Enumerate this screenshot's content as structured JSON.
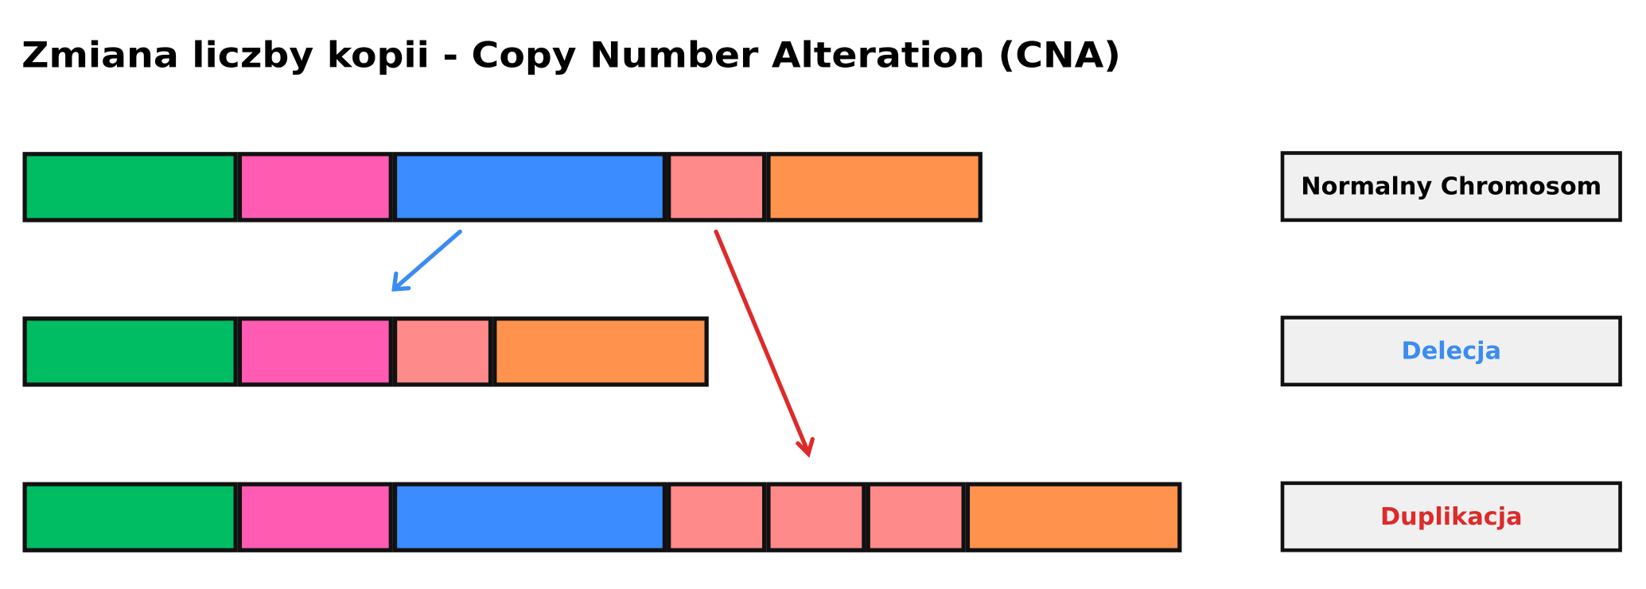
{
  "title": "Zmiana liczby kopii - Copy Number Alteration (CNA)",
  "labels": [
    "Normalny Chromosom",
    "Delecja",
    "Duplikacja"
  ]
}
